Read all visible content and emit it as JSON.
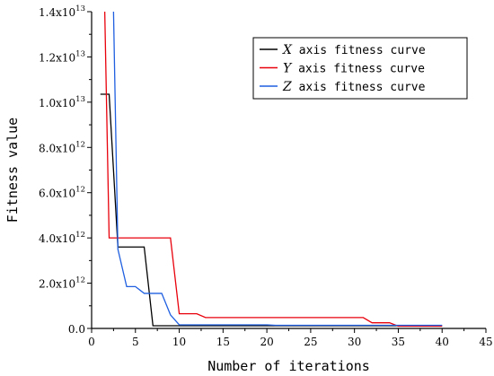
{
  "chart_data": {
    "type": "line",
    "xlabel": "Number of iterations",
    "ylabel": "Fitness value",
    "xlim": [
      0,
      45
    ],
    "ylim": [
      0,
      14000000000000.0
    ],
    "x_ticks": [
      0,
      5,
      10,
      15,
      20,
      25,
      30,
      35,
      40,
      45
    ],
    "y_ticks": [
      {
        "value": 0,
        "mantissa": "0.0",
        "exponent": ""
      },
      {
        "value": 2000000000000.0,
        "mantissa": "2.0x10",
        "exponent": "12"
      },
      {
        "value": 4000000000000.0,
        "mantissa": "4.0x10",
        "exponent": "12"
      },
      {
        "value": 6000000000000.0,
        "mantissa": "6.0x10",
        "exponent": "12"
      },
      {
        "value": 8000000000000.0,
        "mantissa": "8.0x10",
        "exponent": "12"
      },
      {
        "value": 10000000000000.0,
        "mantissa": "1.0x10",
        "exponent": "13"
      },
      {
        "value": 12000000000000.0,
        "mantissa": "1.2x10",
        "exponent": "13"
      },
      {
        "value": 14000000000000.0,
        "mantissa": "1.4x10",
        "exponent": "13"
      }
    ],
    "grid": false,
    "legend_position": "top-right",
    "series": [
      {
        "axis_letter": "X",
        "suffix": " axis fitness curve",
        "color": "#000000",
        "points": [
          [
            1,
            10350000000000.0
          ],
          [
            2,
            10350000000000.0
          ],
          [
            3,
            3600000000000.0
          ],
          [
            6,
            3600000000000.0
          ],
          [
            7,
            120000000000.0
          ],
          [
            40,
            120000000000.0
          ]
        ]
      },
      {
        "axis_letter": "Y",
        "suffix": " axis fitness curve",
        "color": "#e8000b",
        "points": [
          [
            1.5,
            14000000000000.0
          ],
          [
            2,
            4000000000000.0
          ],
          [
            9,
            4000000000000.0
          ],
          [
            10,
            650000000000.0
          ],
          [
            12,
            650000000000.0
          ],
          [
            13,
            480000000000.0
          ],
          [
            31,
            480000000000.0
          ],
          [
            32,
            250000000000.0
          ],
          [
            34,
            250000000000.0
          ],
          [
            35,
            100000000000.0
          ],
          [
            40,
            100000000000.0
          ]
        ]
      },
      {
        "axis_letter": "Z",
        "suffix": " axis fitness curve",
        "color": "#1f5fe0",
        "points": [
          [
            2.5,
            14000000000000.0
          ],
          [
            3,
            3500000000000.0
          ],
          [
            4,
            1850000000000.0
          ],
          [
            5,
            1850000000000.0
          ],
          [
            6,
            1550000000000.0
          ],
          [
            8,
            1550000000000.0
          ],
          [
            9,
            600000000000.0
          ],
          [
            10,
            160000000000.0
          ],
          [
            20,
            160000000000.0
          ],
          [
            21,
            140000000000.0
          ],
          [
            35,
            140000000000.0
          ],
          [
            40,
            140000000000.0
          ]
        ]
      }
    ]
  }
}
